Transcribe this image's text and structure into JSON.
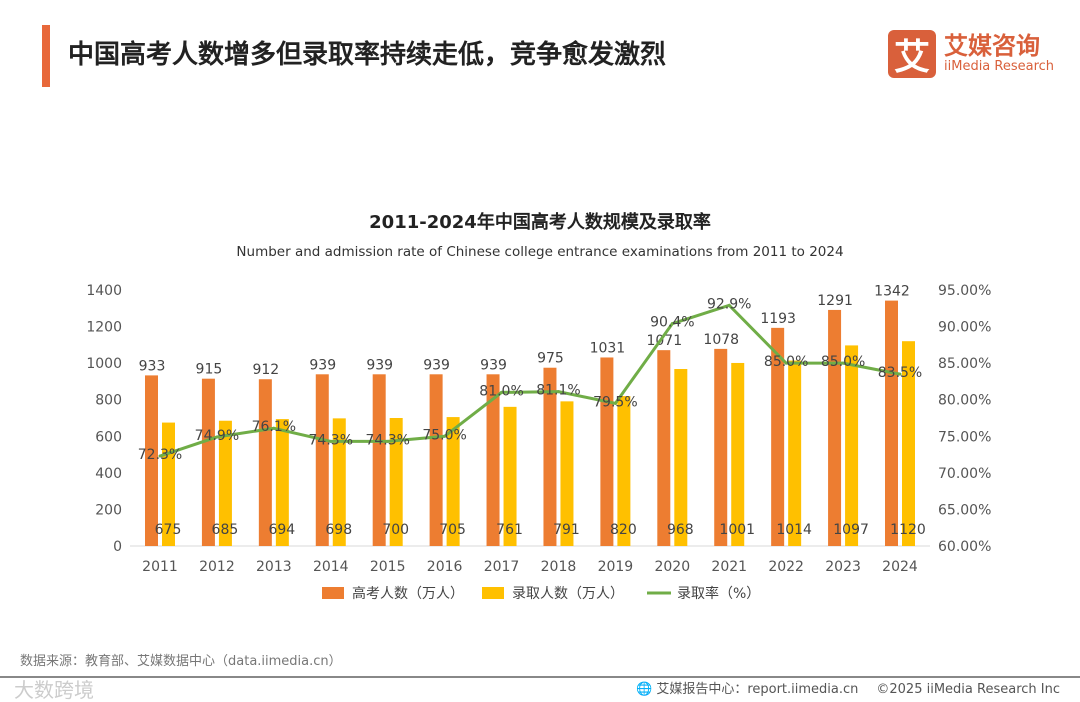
{
  "header": {
    "title": "中国高考人数增多但录取率持续走低，竞争愈发激烈"
  },
  "logo": {
    "mark": "艾",
    "cn": "艾媒咨询",
    "en": "iiMedia Research"
  },
  "colors": {
    "accent": "#e8683a",
    "bar1": "#ed7d31",
    "bar2": "#ffc000",
    "line": "#70ad47"
  },
  "chart_data": {
    "type": "bar+line",
    "title": "2011-2024年中国高考人数规模及录取率",
    "subtitle": "Number and admission rate of Chinese college entrance examinations from 2011 to 2024",
    "categories": [
      "2011",
      "2012",
      "2013",
      "2014",
      "2015",
      "2016",
      "2017",
      "2018",
      "2019",
      "2020",
      "2021",
      "2022",
      "2023",
      "2024"
    ],
    "series": [
      {
        "name": "高考人数（万人）",
        "type": "bar",
        "axis": "left",
        "values": [
          933,
          915,
          912,
          939,
          939,
          939,
          939,
          975,
          1031,
          1071,
          1078,
          1193,
          1291,
          1342
        ]
      },
      {
        "name": "录取人数（万人）",
        "type": "bar",
        "axis": "left",
        "values": [
          675,
          685,
          694,
          698,
          700,
          705,
          761,
          791,
          820,
          968,
          1001,
          1014,
          1097,
          1120
        ]
      },
      {
        "name": "录取率（%）",
        "type": "line",
        "axis": "right",
        "values": [
          72.3,
          74.9,
          76.1,
          74.3,
          74.3,
          75.0,
          81.0,
          81.1,
          79.5,
          90.4,
          92.9,
          85.0,
          85.0,
          83.5
        ],
        "labels": [
          "72.3%",
          "74.9%",
          "76.1%",
          "74.3%",
          "74.3%",
          "75.0%",
          "81.0%",
          "81.1%",
          "79.5%",
          "90.4%",
          "92.9%",
          "85.0%",
          "85.0%",
          "83.5%"
        ]
      }
    ],
    "left_axis": {
      "ylim": [
        0,
        1400
      ],
      "ticks": [
        "0",
        "200",
        "400",
        "600",
        "800",
        "1000",
        "1200",
        "1400"
      ]
    },
    "right_axis": {
      "ylim": [
        60,
        95
      ],
      "ticks": [
        "60.00%",
        "65.00%",
        "70.00%",
        "75.00%",
        "80.00%",
        "85.00%",
        "90.00%",
        "95.00%"
      ]
    },
    "legend_position": "bottom",
    "grid": false
  },
  "footer": {
    "source": "数据来源：教育部、艾媒数据中心（data.iimedia.cn）",
    "report": "艾媒报告中心：report.iimedia.cn",
    "copyright": "©2025  iiMedia Research  Inc",
    "watermark": "大数跨境"
  }
}
